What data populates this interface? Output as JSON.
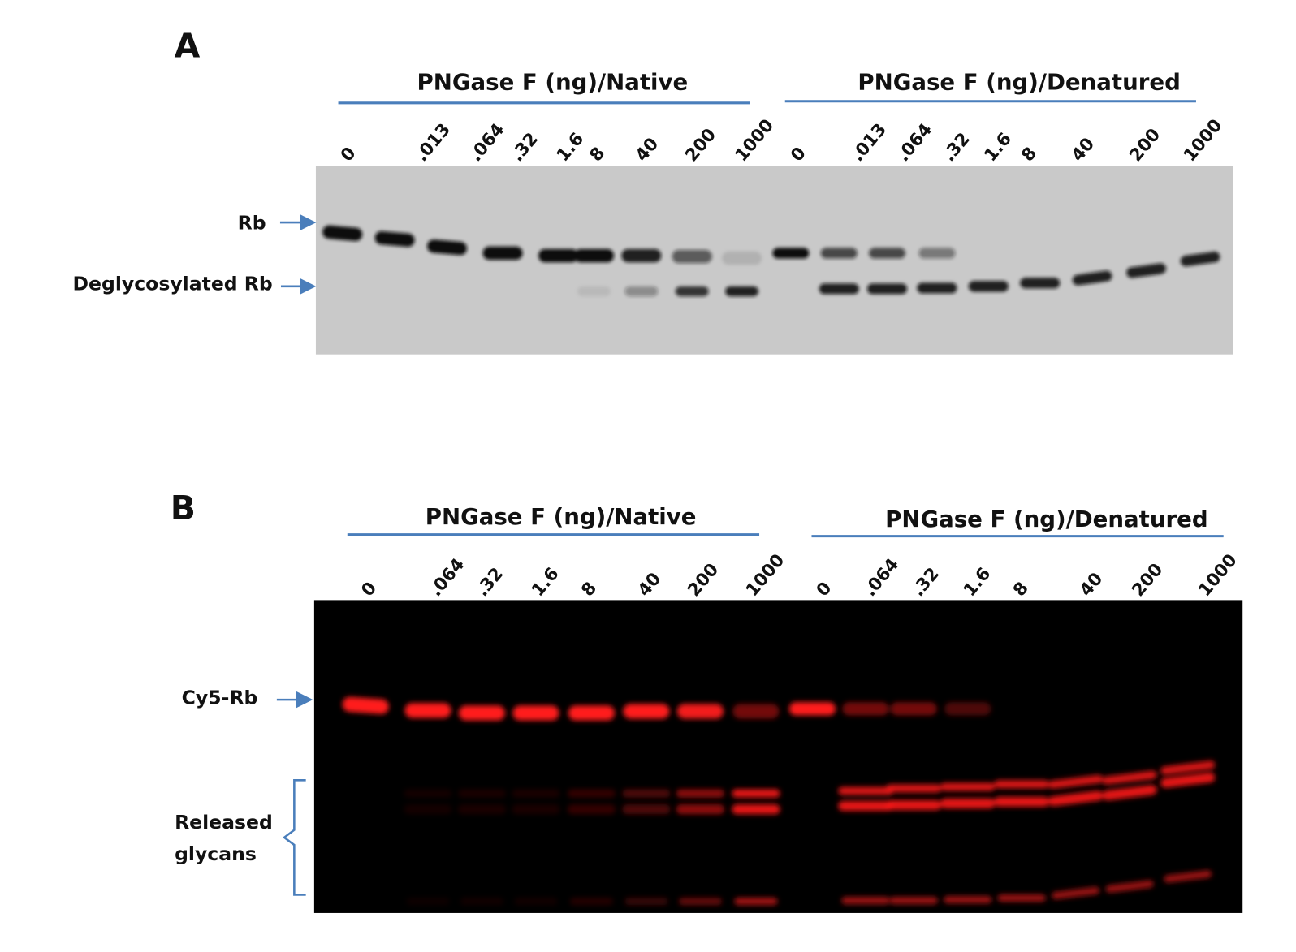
{
  "panels": [
    {
      "label": "A",
      "groups": [
        {
          "title": "PNGase F (ng)/Native",
          "lanes": [
            "0",
            ".013",
            ".064",
            ".32",
            "1.6",
            "8",
            "40",
            "200",
            "1000"
          ]
        },
        {
          "title": "PNGase F (ng)/Denatured",
          "lanes": [
            "0",
            ".013",
            ".064",
            ".32",
            "1.6",
            "8",
            "40",
            "200",
            "1000"
          ]
        }
      ],
      "markers": [
        "Rb",
        "Deglycosylated Rb"
      ]
    },
    {
      "label": "B",
      "groups": [
        {
          "title": "PNGase F (ng)/Native",
          "lanes": [
            "0",
            ".064",
            ".32",
            "1.6",
            "8",
            "40",
            "200",
            "1000"
          ]
        },
        {
          "title": "PNGase F (ng)/Denatured",
          "lanes": [
            "0",
            ".064",
            ".32",
            "1.6",
            "8",
            "40",
            "200",
            "1000"
          ]
        }
      ],
      "markers": [
        "Cy5-Rb"
      ],
      "bracket_label": [
        "Released",
        "glycans"
      ]
    }
  ]
}
